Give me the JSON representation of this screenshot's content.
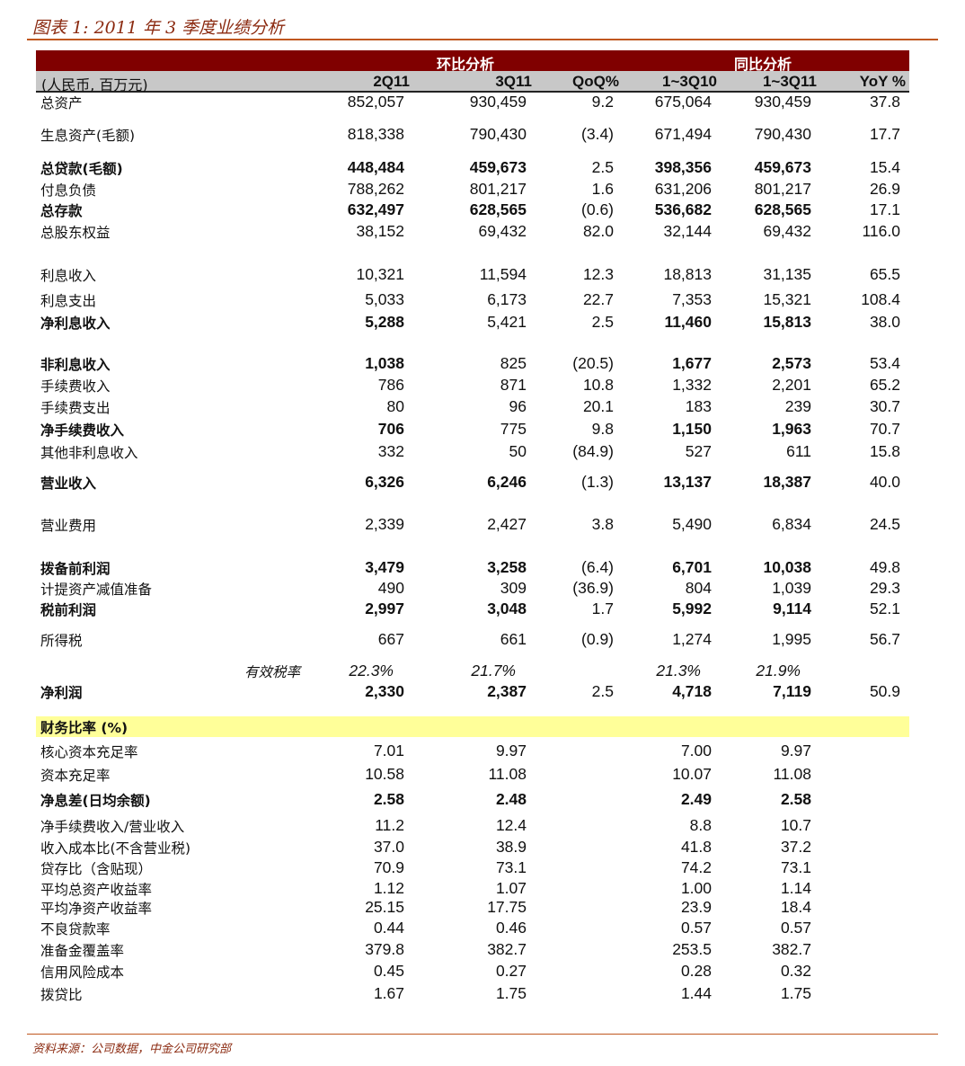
{
  "title": "图表 1: 2011 年 3 季度业绩分析",
  "header": {
    "group_qoq": "环比分析",
    "group_yoy": "同比分析",
    "unit": "(人民币, 百万元)",
    "columns": [
      "2Q11",
      "3Q11",
      "QoQ%",
      "1~3Q10",
      "1~3Q11",
      "YoY %"
    ]
  },
  "rows": [
    {
      "label": "总资产",
      "values": [
        "852,057",
        "930,459",
        "9.2",
        "675,064",
        "930,459",
        "37.8"
      ],
      "bold": []
    },
    {
      "label": "生息资产(毛额)",
      "values": [
        "818,338",
        "790,430",
        "(3.4)",
        "671,494",
        "790,430",
        "17.7"
      ],
      "bold": []
    },
    {
      "label": "总贷款(毛额)",
      "values": [
        "448,484",
        "459,673",
        "2.5",
        "398,356",
        "459,673",
        "15.4"
      ],
      "bold": [
        0,
        1,
        2,
        4,
        5
      ]
    },
    {
      "label": "付息负债",
      "values": [
        "788,262",
        "801,217",
        "1.6",
        "631,206",
        "801,217",
        "26.9"
      ],
      "bold": []
    },
    {
      "label": "总存款",
      "values": [
        "632,497",
        "628,565",
        "(0.6)",
        "536,682",
        "628,565",
        "17.1"
      ],
      "bold": [
        0,
        1,
        2,
        4,
        5
      ]
    },
    {
      "label": "总股东权益",
      "values": [
        "38,152",
        "69,432",
        "82.0",
        "32,144",
        "69,432",
        "116.0"
      ],
      "bold": []
    },
    {
      "label": "利息收入",
      "values": [
        "10,321",
        "11,594",
        "12.3",
        "18,813",
        "31,135",
        "65.5"
      ],
      "bold": []
    },
    {
      "label": "利息支出",
      "values": [
        "5,033",
        "6,173",
        "22.7",
        "7,353",
        "15,321",
        "108.4"
      ],
      "bold": []
    },
    {
      "label": "净利息收入",
      "values": [
        "5,288",
        "5,421",
        "2.5",
        "11,460",
        "15,813",
        "38.0"
      ],
      "bold": [
        0,
        1,
        4,
        5
      ]
    },
    {
      "label": "非利息收入",
      "values": [
        "1,038",
        "825",
        "(20.5)",
        "1,677",
        "2,573",
        "53.4"
      ],
      "bold": [
        0,
        1,
        4,
        5
      ]
    },
    {
      "label": "手续费收入",
      "values": [
        "786",
        "871",
        "10.8",
        "1,332",
        "2,201",
        "65.2"
      ],
      "bold": []
    },
    {
      "label": "手续费支出",
      "values": [
        "80",
        "96",
        "20.1",
        "183",
        "239",
        "30.7"
      ],
      "bold": []
    },
    {
      "label": "净手续费收入",
      "values": [
        "706",
        "775",
        "9.8",
        "1,150",
        "1,963",
        "70.7"
      ],
      "bold": [
        0,
        1,
        4,
        5
      ]
    },
    {
      "label": "其他非利息收入",
      "values": [
        "332",
        "50",
        "(84.9)",
        "527",
        "611",
        "15.8"
      ],
      "bold": []
    },
    {
      "label": "营业收入",
      "values": [
        "6,326",
        "6,246",
        "(1.3)",
        "13,137",
        "18,387",
        "40.0"
      ],
      "bold": [
        0,
        1,
        2,
        4,
        5
      ]
    },
    {
      "label": "营业费用",
      "values": [
        "2,339",
        "2,427",
        "3.8",
        "5,490",
        "6,834",
        "24.5"
      ],
      "bold": []
    },
    {
      "label": "拨备前利润",
      "values": [
        "3,479",
        "3,258",
        "(6.4)",
        "6,701",
        "10,038",
        "49.8"
      ],
      "bold": [
        0,
        1,
        2,
        4,
        5
      ]
    },
    {
      "label": "计提资产减值准备",
      "values": [
        "490",
        "309",
        "(36.9)",
        "804",
        "1,039",
        "29.3"
      ],
      "bold": []
    },
    {
      "label": "税前利润",
      "values": [
        "2,997",
        "3,048",
        "1.7",
        "5,992",
        "9,114",
        "52.1"
      ],
      "bold": [
        0,
        1,
        2,
        4,
        5
      ]
    },
    {
      "label": "所得税",
      "values": [
        "667",
        "661",
        "(0.9)",
        "1,274",
        "1,995",
        "56.7"
      ],
      "bold": []
    },
    {
      "label": "有效税率",
      "values": [
        "22.3%",
        "21.7%",
        "",
        "21.3%",
        "21.9%",
        ""
      ],
      "bold": [],
      "italic": true
    },
    {
      "label": "净利润",
      "values": [
        "2,330",
        "2,387",
        "2.5",
        "4,718",
        "7,119",
        "50.9"
      ],
      "bold": [
        0,
        1,
        2,
        4,
        5
      ]
    },
    {
      "label": "财务比率 (%)",
      "values": [
        "",
        "",
        "",
        "",
        "",
        ""
      ],
      "bold": [
        0
      ]
    },
    {
      "label": "核心资本充足率",
      "values": [
        "7.01",
        "9.97",
        "",
        "7.00",
        "9.97",
        ""
      ],
      "bold": []
    },
    {
      "label": "资本充足率",
      "values": [
        "10.58",
        "11.08",
        "",
        "10.07",
        "11.08",
        ""
      ],
      "bold": []
    },
    {
      "label": "净息差(日均余额)",
      "values": [
        "2.58",
        "2.48",
        "",
        "2.49",
        "2.58",
        ""
      ],
      "bold": [
        0,
        1,
        2,
        4,
        5
      ]
    },
    {
      "label": "净手续费收入/营业收入",
      "values": [
        "11.2",
        "12.4",
        "",
        "8.8",
        "10.7",
        ""
      ],
      "bold": []
    },
    {
      "label": "收入成本比(不含营业税)",
      "values": [
        "37.0",
        "38.9",
        "",
        "41.8",
        "37.2",
        ""
      ],
      "bold": []
    },
    {
      "label": "贷存比（含贴现）",
      "values": [
        "70.9",
        "73.1",
        "",
        "74.2",
        "73.1",
        ""
      ],
      "bold": []
    },
    {
      "label": "平均总资产收益率",
      "values": [
        "1.12",
        "1.07",
        "",
        "1.00",
        "1.14",
        ""
      ],
      "bold": []
    },
    {
      "label": "平均净资产收益率",
      "values": [
        "25.15",
        "17.75",
        "",
        "23.9",
        "18.4",
        ""
      ],
      "bold": []
    },
    {
      "label": "不良贷款率",
      "values": [
        "0.44",
        "0.46",
        "",
        "0.57",
        "0.57",
        ""
      ],
      "bold": []
    },
    {
      "label": "准备金覆盖率",
      "values": [
        "379.8",
        "382.7",
        "",
        "253.5",
        "382.7",
        ""
      ],
      "bold": []
    },
    {
      "label": "信用风险成本",
      "values": [
        "0.45",
        "0.27",
        "",
        "0.28",
        "0.32",
        ""
      ],
      "bold": []
    },
    {
      "label": "拨贷比",
      "values": [
        "1.67",
        "1.75",
        "",
        "1.44",
        "1.75",
        ""
      ],
      "bold": []
    }
  ],
  "source": "资料来源：公司数据，中金公司研究部"
}
